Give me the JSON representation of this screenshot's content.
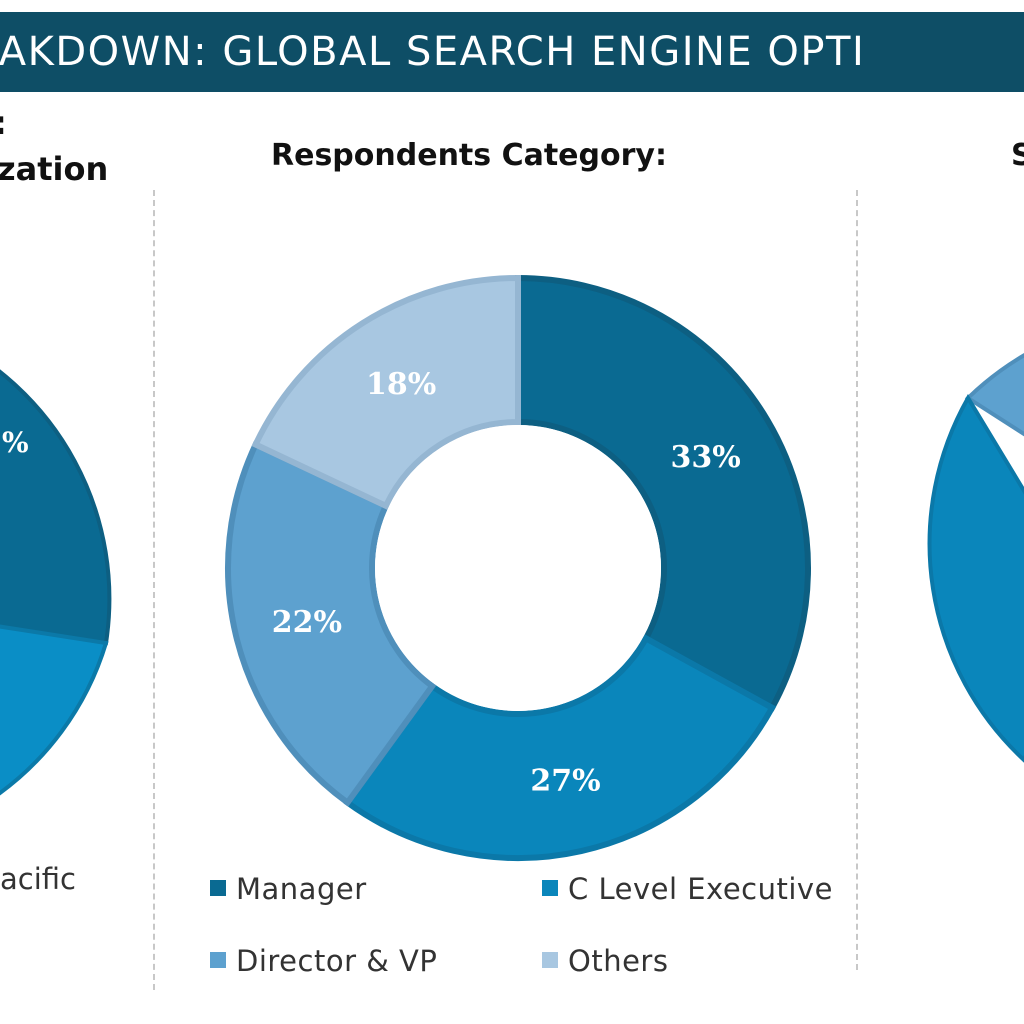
{
  "header": {
    "title": "EAKDOWN: GLOBAL SEARCH ENGINE OPTI"
  },
  "left_panel": {
    "title_line1": ":",
    "title_line2": "ization",
    "legend_text": "acific",
    "visible_label": "%"
  },
  "right_panel": {
    "title": "S"
  },
  "chart_data": {
    "type": "pie",
    "title": "Respondents Category:",
    "categories": [
      "Manager",
      "C Level Executive",
      "Director & VP",
      "Others"
    ],
    "values": [
      33,
      27,
      22,
      18
    ],
    "labels": [
      "33%",
      "27%",
      "22%",
      "18%"
    ],
    "colors": [
      "#0a6a92",
      "#0a86bb",
      "#5da1cf",
      "#a8c7e1"
    ],
    "legend_position": "bottom"
  }
}
